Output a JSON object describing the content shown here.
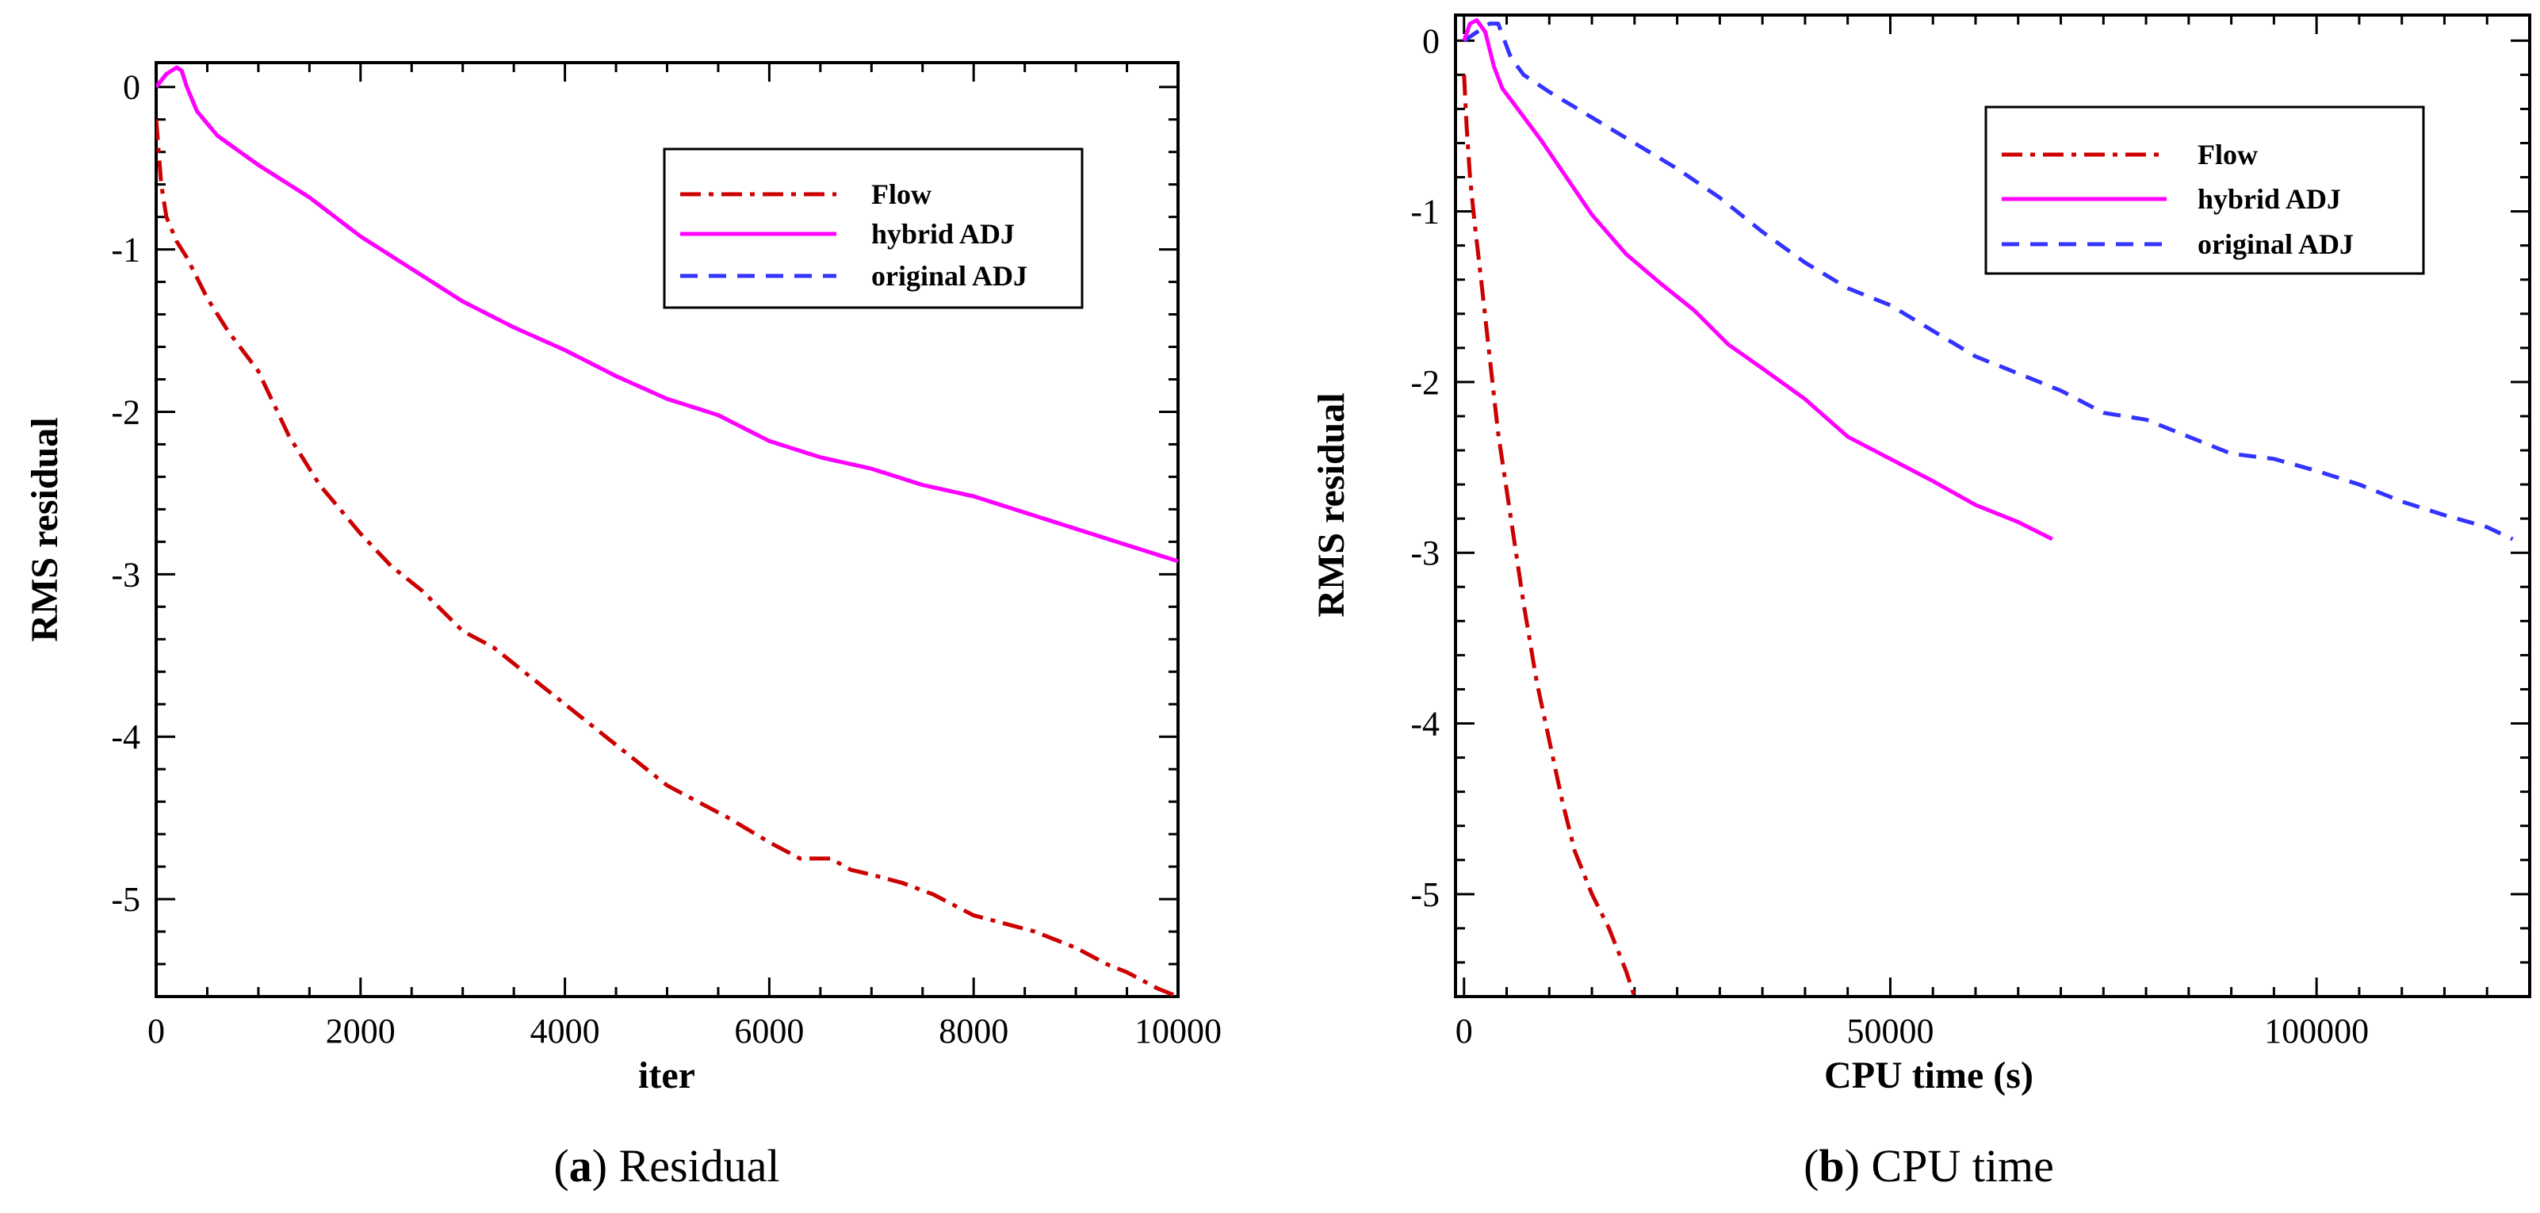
{
  "figure": {
    "captions": [
      {
        "letter": "a",
        "text": "Residual"
      },
      {
        "letter": "b",
        "text": "CPU time"
      }
    ]
  },
  "chart_data": [
    {
      "type": "line",
      "panel": "a",
      "title": "",
      "xlabel": "iter",
      "ylabel": "RMS residual",
      "xlim": [
        0,
        10000
      ],
      "ylim": [
        -5.6,
        0.15
      ],
      "xticks": [
        0,
        2000,
        4000,
        6000,
        8000,
        10000
      ],
      "xtick_labels": [
        "0",
        "2000",
        "4000",
        "6000",
        "8000",
        "10000"
      ],
      "yticks": [
        0,
        -1,
        -2,
        -3,
        -4,
        -5
      ],
      "ytick_labels": [
        "0",
        "-1",
        "-2",
        "-3",
        "-4",
        "-5"
      ],
      "legend_position": "top-right",
      "series": [
        {
          "name": "Flow",
          "color": "#cc0000",
          "style": "dashdot",
          "x": [
            0,
            50,
            100,
            200,
            300,
            500,
            700,
            1000,
            1300,
            1600,
            2000,
            2300,
            2600,
            3000,
            3300,
            3600,
            4000,
            4300,
            4600,
            5000,
            5300,
            5600,
            6000,
            6300,
            6600,
            6800,
            7000,
            7300,
            7600,
            8000,
            8300,
            8600,
            9000,
            9300,
            9500,
            9800,
            10000
          ],
          "y": [
            -0.2,
            -0.6,
            -0.8,
            -0.95,
            -1.05,
            -1.3,
            -1.5,
            -1.75,
            -2.15,
            -2.45,
            -2.75,
            -2.95,
            -3.1,
            -3.35,
            -3.45,
            -3.6,
            -3.8,
            -3.95,
            -4.1,
            -4.3,
            -4.4,
            -4.5,
            -4.65,
            -4.75,
            -4.75,
            -4.82,
            -4.85,
            -4.9,
            -4.97,
            -5.1,
            -5.15,
            -5.2,
            -5.3,
            -5.4,
            -5.45,
            -5.55,
            -5.6
          ]
        },
        {
          "name": "hybrid ADJ",
          "color": "#ff00ff",
          "style": "solid",
          "x": [
            0,
            100,
            200,
            250,
            300,
            400,
            600,
            1000,
            1500,
            2000,
            2500,
            3000,
            3500,
            4000,
            4500,
            5000,
            5500,
            6000,
            6500,
            7000,
            7500,
            8000,
            8500,
            9000,
            9500,
            10000
          ],
          "y": [
            0,
            0.08,
            0.12,
            0.1,
            0.0,
            -0.15,
            -0.3,
            -0.48,
            -0.68,
            -0.92,
            -1.12,
            -1.32,
            -1.48,
            -1.62,
            -1.78,
            -1.92,
            -2.02,
            -2.18,
            -2.28,
            -2.35,
            -2.45,
            -2.52,
            -2.62,
            -2.72,
            -2.82,
            -2.92
          ]
        },
        {
          "name": "original ADJ",
          "color": "#3333ff",
          "style": "dashed",
          "x": [
            0,
            100,
            200,
            250,
            300,
            400,
            600,
            1000,
            1500,
            2000,
            2500,
            3000,
            3500,
            4000,
            4500,
            5000,
            5500,
            6000,
            6500,
            7000,
            7500,
            8000,
            8500,
            9000,
            9500,
            10000
          ],
          "y": [
            0,
            0.08,
            0.12,
            0.1,
            0.0,
            -0.15,
            -0.3,
            -0.48,
            -0.68,
            -0.92,
            -1.12,
            -1.32,
            -1.48,
            -1.62,
            -1.78,
            -1.92,
            -2.02,
            -2.18,
            -2.28,
            -2.35,
            -2.45,
            -2.52,
            -2.62,
            -2.72,
            -2.82,
            -2.92
          ]
        }
      ]
    },
    {
      "type": "line",
      "panel": "b",
      "title": "",
      "xlabel": "CPU time (s)",
      "ylabel": "RMS residual",
      "xlim": [
        -1000,
        125000
      ],
      "ylim": [
        -5.6,
        0.15
      ],
      "xticks": [
        0,
        50000,
        100000
      ],
      "xtick_labels": [
        "0",
        "50000",
        "100000"
      ],
      "yticks": [
        0,
        -1,
        -2,
        -3,
        -4,
        -5
      ],
      "ytick_labels": [
        "0",
        "-1",
        "-2",
        "-3",
        "-4",
        "-5"
      ],
      "legend_position": "top-right",
      "series": [
        {
          "name": "Flow",
          "color": "#cc0000",
          "style": "dashdot",
          "x": [
            0,
            300,
            700,
            1200,
            2000,
            3000,
            4000,
            5500,
            7000,
            8500,
            10000,
            11500,
            13000,
            15000,
            17000,
            19000,
            20000
          ],
          "y": [
            -0.2,
            -0.5,
            -0.8,
            -1.05,
            -1.4,
            -1.85,
            -2.3,
            -2.8,
            -3.3,
            -3.75,
            -4.1,
            -4.45,
            -4.75,
            -5.0,
            -5.2,
            -5.45,
            -5.6
          ]
        },
        {
          "name": "hybrid ADJ",
          "color": "#ff00ff",
          "style": "solid",
          "x": [
            0,
            700,
            1500,
            2500,
            3500,
            4500,
            6000,
            9000,
            12000,
            15000,
            19000,
            23000,
            27000,
            31000,
            35000,
            40000,
            45000,
            50000,
            55000,
            60000,
            65000,
            69000
          ],
          "y": [
            0,
            0.1,
            0.12,
            0.05,
            -0.15,
            -0.28,
            -0.38,
            -0.58,
            -0.8,
            -1.02,
            -1.25,
            -1.42,
            -1.58,
            -1.78,
            -1.92,
            -2.1,
            -2.32,
            -2.45,
            -2.58,
            -2.72,
            -2.82,
            -2.92
          ]
        },
        {
          "name": "original ADJ",
          "color": "#3333ff",
          "style": "dashed",
          "x": [
            0,
            1500,
            3000,
            4000,
            5500,
            7000,
            10000,
            15000,
            20000,
            25000,
            30000,
            35000,
            40000,
            45000,
            50000,
            55000,
            60000,
            65000,
            70000,
            75000,
            80000,
            85000,
            90000,
            95000,
            100000,
            105000,
            110000,
            115000,
            120000,
            123000
          ],
          "y": [
            0,
            0.05,
            0.1,
            0.1,
            -0.1,
            -0.2,
            -0.3,
            -0.45,
            -0.6,
            -0.75,
            -0.92,
            -1.12,
            -1.3,
            -1.45,
            -1.55,
            -1.7,
            -1.85,
            -1.95,
            -2.05,
            -2.18,
            -2.22,
            -2.32,
            -2.42,
            -2.45,
            -2.52,
            -2.6,
            -2.7,
            -2.78,
            -2.85,
            -2.92
          ]
        }
      ]
    }
  ]
}
